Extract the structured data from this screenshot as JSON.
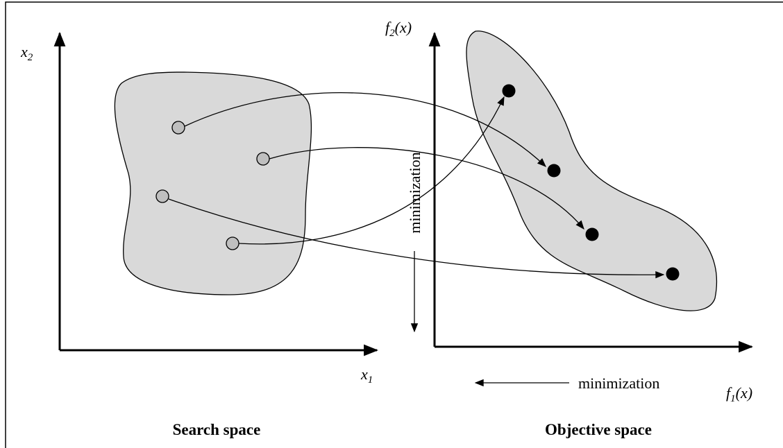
{
  "left_panel": {
    "x_axis": {
      "base": "x",
      "sub": "1"
    },
    "y_axis": {
      "base": "x",
      "sub": "2"
    },
    "caption": "Search space"
  },
  "right_panel": {
    "x_axis": {
      "base": "f",
      "sub": "1",
      "rest": "(x)"
    },
    "y_axis": {
      "base": "f",
      "sub": "2",
      "rest": "(x)"
    },
    "vertical_note": "minimization",
    "horizontal_note": "minimization",
    "caption": "Objective space"
  }
}
